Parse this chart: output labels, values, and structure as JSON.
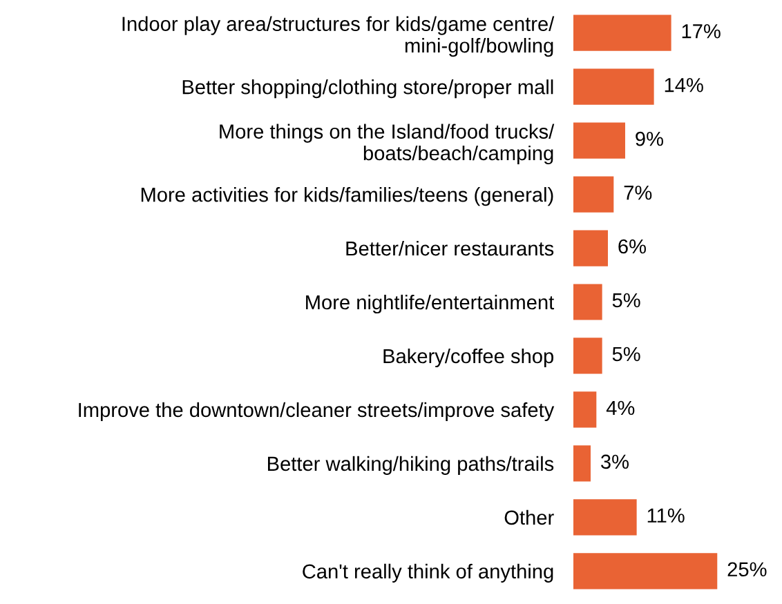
{
  "chart_data": {
    "type": "bar",
    "orientation": "horizontal",
    "categories": [
      "Indoor play area/structures for kids/game centre/\nmini-golf/bowling",
      "Better shopping/clothing store/proper mall",
      "More things on the Island/food trucks/\nboats/beach/camping",
      "More activities for kids/families/teens (general)",
      "Better/nicer restaurants",
      "More nightlife/entertainment",
      "Bakery/coffee shop",
      "Improve the downtown/cleaner streets/improve safety",
      "Better walking/hiking paths/trails",
      "Other",
      "Can't really think of anything"
    ],
    "values": [
      17,
      14,
      9,
      7,
      6,
      5,
      5,
      4,
      3,
      11,
      25
    ],
    "value_labels": [
      "17%",
      "14%",
      "9%",
      "7%",
      "6%",
      "5%",
      "5%",
      "4%",
      "3%",
      "11%",
      "25%"
    ],
    "color": "#e96334",
    "grid": false,
    "legend": false
  }
}
